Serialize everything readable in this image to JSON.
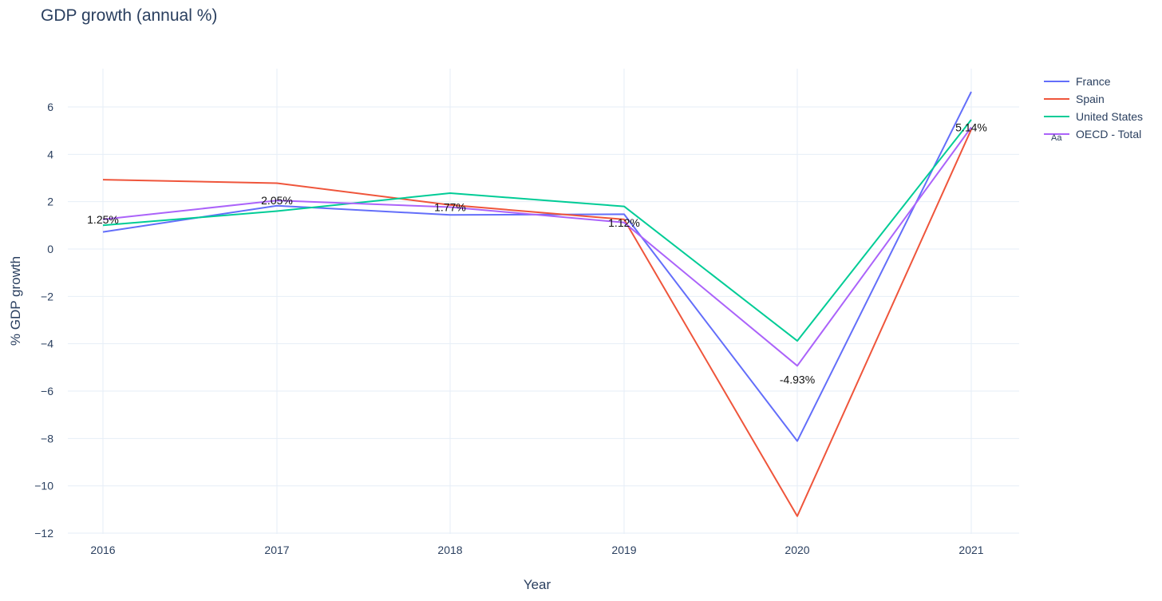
{
  "chart_data": {
    "type": "line",
    "title": "GDP growth (annual %)",
    "xlabel": "Year",
    "ylabel": "% GDP growth",
    "x": [
      2016,
      2017,
      2018,
      2019,
      2020,
      2021
    ],
    "x_tick_labels": [
      "2016",
      "2017",
      "2018",
      "2019",
      "2020",
      "2021"
    ],
    "y_ticks": [
      6,
      4,
      2,
      0,
      -2,
      -4,
      -6,
      -8,
      -10,
      -12
    ],
    "y_tick_labels": [
      "6",
      "4",
      "2",
      "0",
      "−2",
      "−4",
      "−6",
      "−8",
      "−10",
      "−12"
    ],
    "ylim": [
      -12,
      7.5
    ],
    "grid": true,
    "legend_position": "top-right",
    "series": [
      {
        "name": "France",
        "color": "#636efa",
        "values": [
          0.72,
          1.83,
          1.44,
          1.47,
          -8.11,
          6.64
        ]
      },
      {
        "name": "Spain",
        "color": "#ef553b",
        "values": [
          2.93,
          2.78,
          1.86,
          1.25,
          -11.28,
          5.05
        ]
      },
      {
        "name": "United States",
        "color": "#00cc96",
        "values": [
          1.0,
          1.6,
          2.36,
          1.8,
          -3.88,
          5.46
        ]
      },
      {
        "name": "OECD - Total",
        "color": "#ab63fa",
        "values": [
          1.25,
          2.05,
          1.77,
          1.12,
          -4.93,
          5.14
        ]
      }
    ],
    "data_labels": [
      "1.25%",
      "2.05%",
      "1.77%",
      "1.12%",
      "-4.93%",
      "5.14%"
    ],
    "legend_marker_text": "Aa"
  }
}
